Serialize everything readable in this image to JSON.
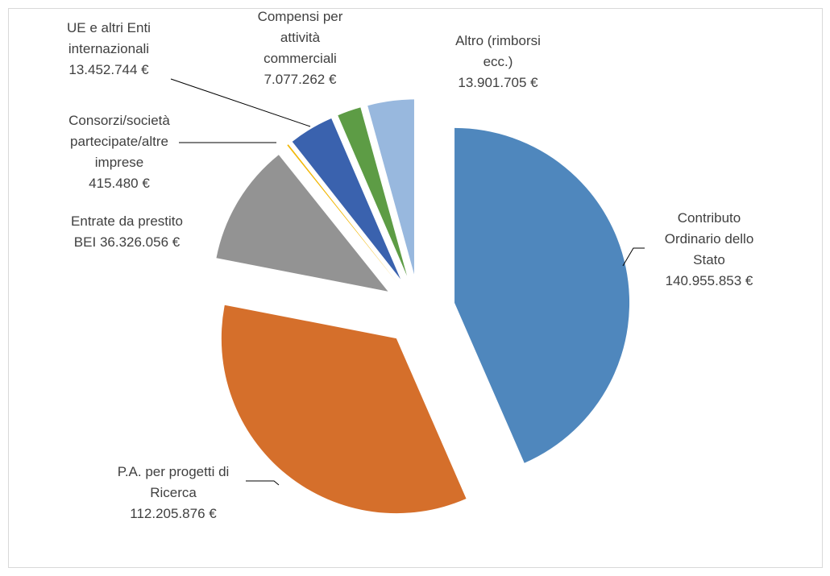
{
  "chart_data": {
    "type": "pie",
    "categories": [
      "Contributo Ordinario dello Stato",
      "P.A. per progetti di Ricerca",
      "Entrate da prestito BEI",
      "Consorzi/società partecipate/altre imprese",
      "UE e altri Enti internazionali",
      "Compensi per attività commerciali",
      "Altro (rimborsi ecc.)"
    ],
    "values": [
      140955853,
      112205876,
      36326056,
      415480,
      13452744,
      7077262,
      13901705
    ],
    "value_labels": [
      "140.955.853 €",
      "112.205.876 €",
      "36.326.056 €",
      "415.480 €",
      "13.452.744 €",
      "7.077.262 €",
      "13.901.705 €"
    ],
    "colors": [
      "#4f87bd",
      "#d56f2b",
      "#939393",
      "#f2b705",
      "#3a62ae",
      "#5d9c45",
      "#98b8de"
    ],
    "exploded": true
  }
}
